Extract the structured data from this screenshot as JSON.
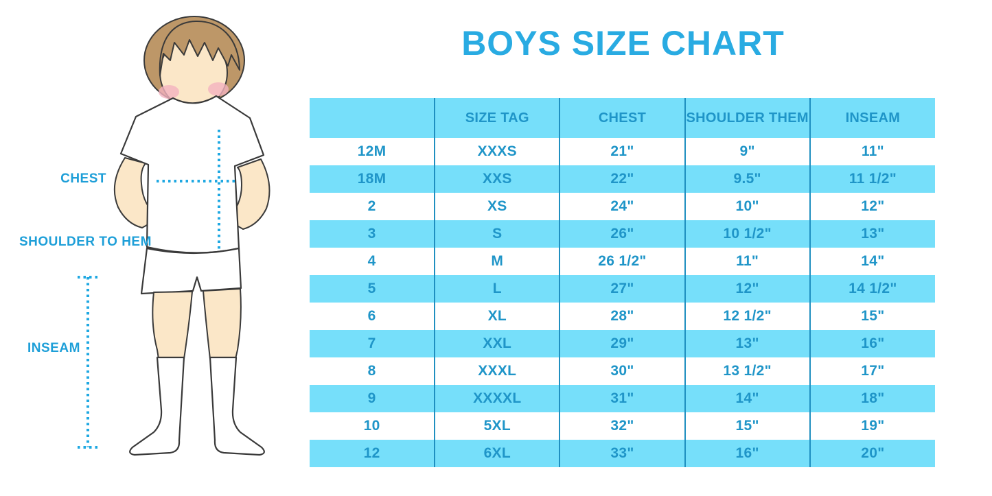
{
  "title": "BOYS SIZE CHART",
  "figure": {
    "labels": {
      "chest": "CHEST",
      "shoulder_to_hem": "SHOULDER TO HEM",
      "inseam": "INSEAM"
    }
  },
  "colors": {
    "title": "#29ABE2",
    "label": "#1E9FD8",
    "table-text": "#1F95C8",
    "stripe": "#76DFFA",
    "divider": "#1F8FC0",
    "dotted": "#1FA8E2",
    "skin": "#FBE7C8",
    "hair": "#BD9768",
    "blush": "#F4B3BF",
    "outline": "#3A3A3A"
  },
  "chart_data": {
    "type": "table",
    "title": "BOYS SIZE CHART",
    "columns": [
      "",
      "SIZE TAG",
      "CHEST",
      "SHOULDER THEM",
      "INSEAM"
    ],
    "rows": [
      [
        "12M",
        "XXXS",
        "21\"",
        "9\"",
        "11\""
      ],
      [
        "18M",
        "XXS",
        "22\"",
        "9.5\"",
        "11 1/2\""
      ],
      [
        "2",
        "XS",
        "24\"",
        "10\"",
        "12\""
      ],
      [
        "3",
        "S",
        "26\"",
        "10 1/2\"",
        "13\""
      ],
      [
        "4",
        "M",
        "26 1/2\"",
        "11\"",
        "14\""
      ],
      [
        "5",
        "L",
        "27\"",
        "12\"",
        "14 1/2\""
      ],
      [
        "6",
        "XL",
        "28\"",
        "12 1/2\"",
        "15\""
      ],
      [
        "7",
        "XXL",
        "29\"",
        "13\"",
        "16\""
      ],
      [
        "8",
        "XXXL",
        "30\"",
        "13 1/2\"",
        "17\""
      ],
      [
        "9",
        "XXXXL",
        "31\"",
        "14\"",
        "18\""
      ],
      [
        "10",
        "5XL",
        "32\"",
        "15\"",
        "19\""
      ],
      [
        "12",
        "6XL",
        "33\"",
        "16\"",
        "20\""
      ]
    ]
  }
}
